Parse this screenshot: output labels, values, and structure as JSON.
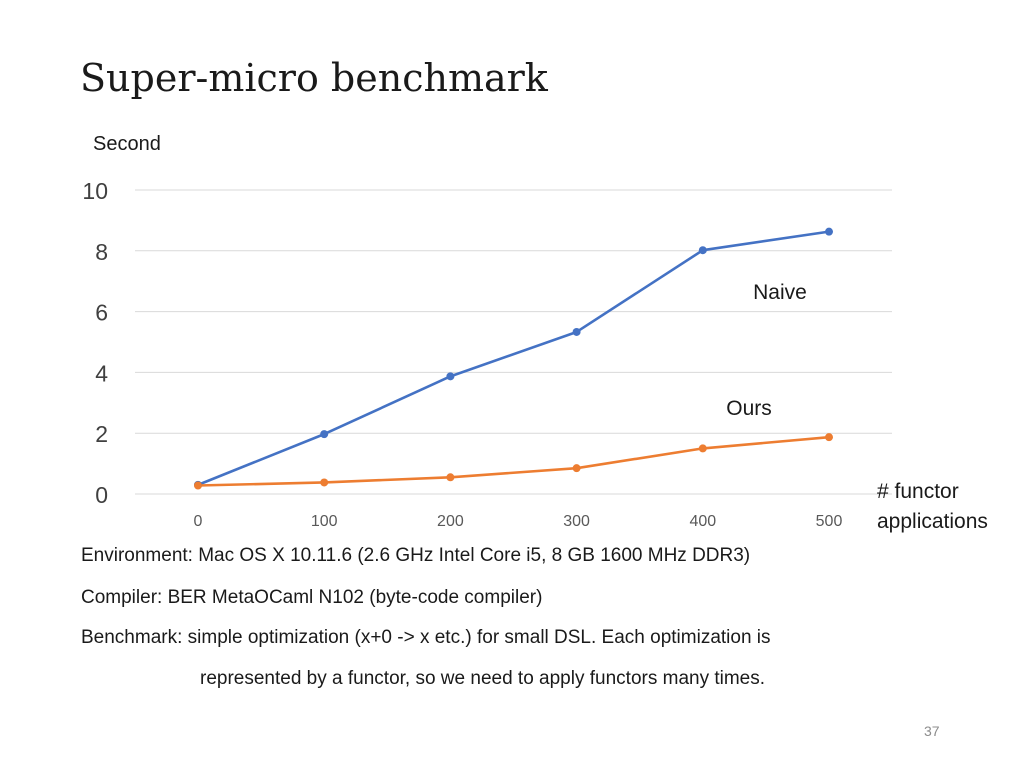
{
  "slide": {
    "title": "Super-micro benchmark",
    "page_number": "37"
  },
  "notes": {
    "environment": "Environment: Mac OS X 10.11.6 (2.6 GHz Intel Core i5, 8 GB 1600 MHz DDR3)",
    "compiler": "Compiler: BER MetaOCaml N102 (byte-code compiler)",
    "benchmark_line1": "Benchmark: simple optimization (x+0 -> x etc.) for small DSL. Each optimization is",
    "benchmark_line2": "represented by a functor, so we need to apply functors many times."
  },
  "chart_data": {
    "type": "line",
    "title": "",
    "ylabel": "Second",
    "xlabel_lines": [
      "# functor",
      "applications"
    ],
    "x": [
      0,
      100,
      200,
      300,
      400,
      500
    ],
    "x_tick_labels": [
      "0",
      "100",
      "200",
      "300",
      "400",
      "500"
    ],
    "ylim": [
      0,
      10
    ],
    "y_ticks": [
      0,
      2,
      4,
      6,
      8,
      10
    ],
    "y_tick_labels": [
      "0",
      "2",
      "4",
      "6",
      "8",
      "10"
    ],
    "grid": true,
    "series": [
      {
        "name": "Naive",
        "color": "#4472C4",
        "values": [
          0.3,
          1.97,
          3.87,
          5.33,
          8.02,
          8.63
        ]
      },
      {
        "name": "Ours",
        "color": "#ED7D31",
        "values": [
          0.28,
          0.38,
          0.55,
          0.85,
          1.5,
          1.87
        ]
      }
    ]
  }
}
